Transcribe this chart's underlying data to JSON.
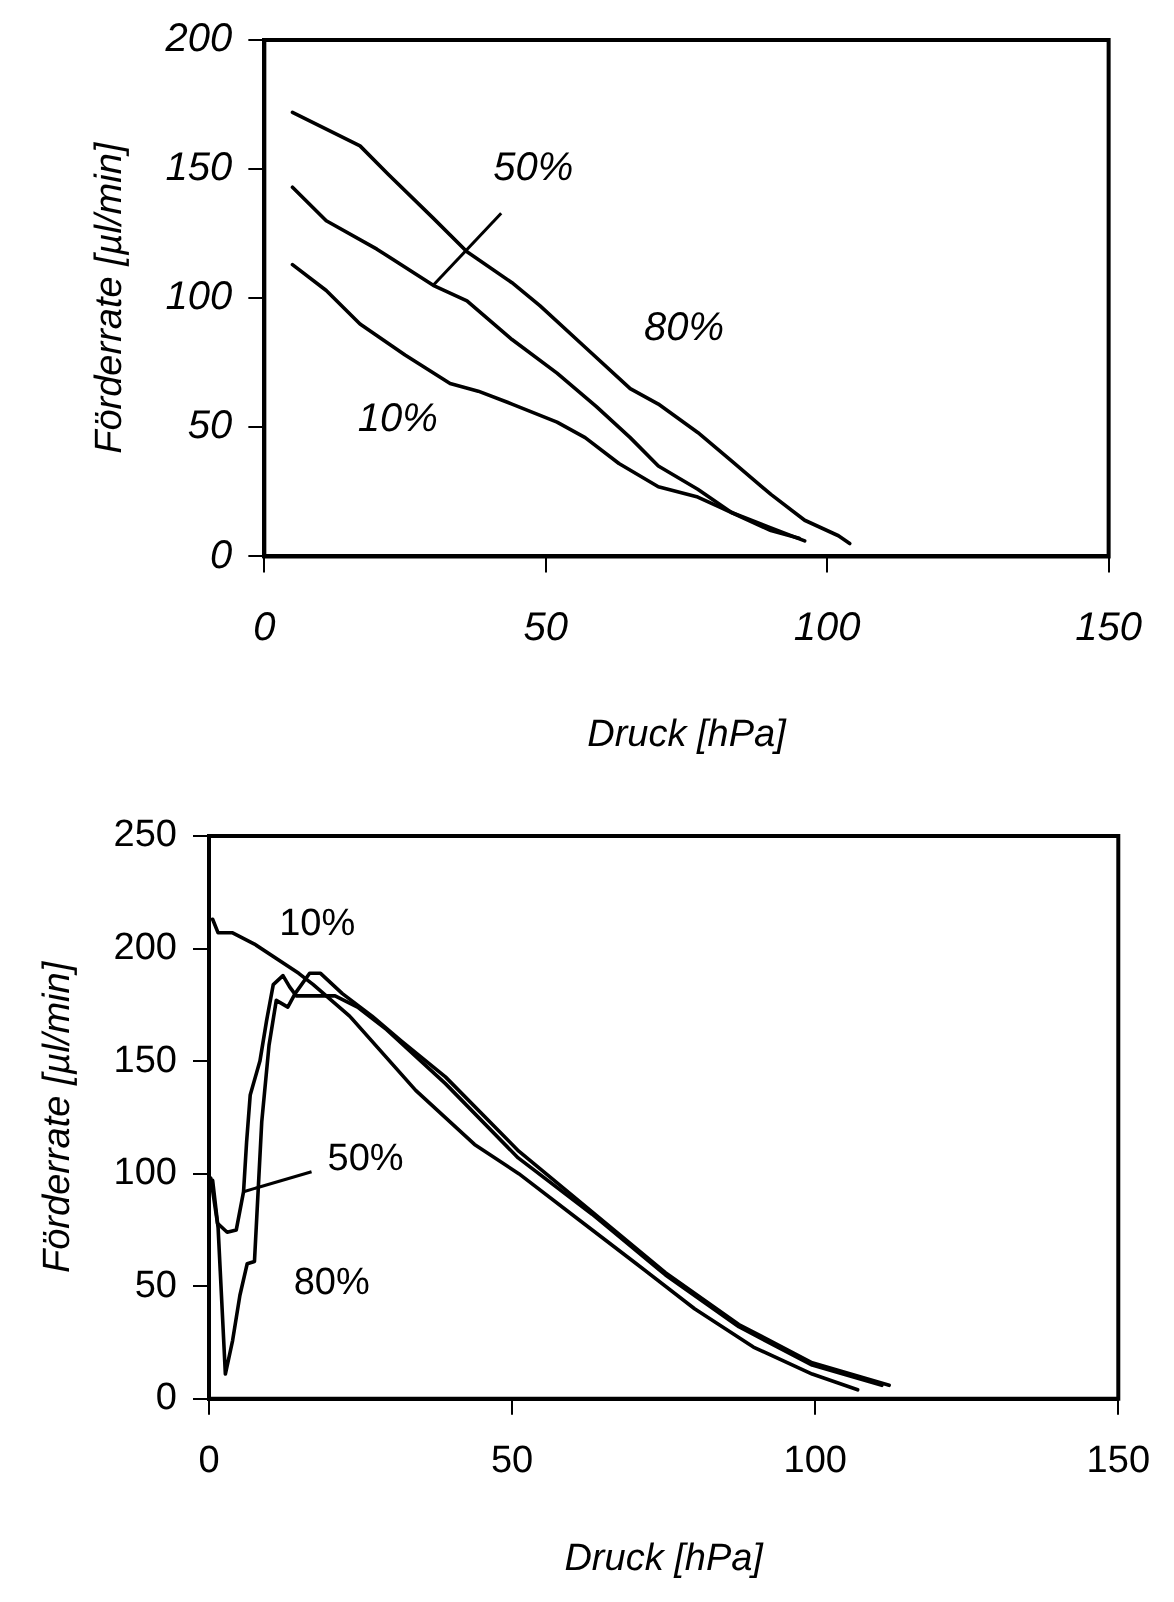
{
  "chart_data": [
    {
      "type": "line",
      "xlabel": "Druck [hPa]",
      "ylabel": "Förderrate [µl/min]",
      "xlim": [
        0,
        150
      ],
      "xticks": [
        0,
        50,
        100,
        150
      ],
      "ylim": [
        0,
        200
      ],
      "yticks": [
        0,
        50,
        100,
        150,
        200
      ],
      "grid": false,
      "legend": false,
      "marker": "none",
      "line_style": "solid",
      "series": [
        {
          "color": "#000000",
          "x": [
            5,
            17,
            22,
            30,
            36,
            44,
            49,
            57,
            65,
            70,
            77,
            83,
            90,
            96,
            102,
            104
          ],
          "values": [
            172,
            159,
            148,
            131,
            118,
            106,
            97,
            81,
            65,
            59,
            48,
            37,
            24,
            14,
            8,
            5
          ]
        },
        {
          "color": "#000000",
          "x": [
            5,
            11,
            20,
            30,
            36,
            44,
            52,
            59,
            65,
            70,
            77,
            83,
            90,
            96
          ],
          "values": [
            143,
            130,
            119,
            105,
            99,
            84,
            71,
            58,
            46,
            35,
            26,
            17,
            11,
            6
          ]
        },
        {
          "color": "#000000",
          "x": [
            5,
            11,
            17,
            25,
            33,
            38,
            44,
            52,
            57,
            63,
            70,
            77,
            83,
            90,
            95
          ],
          "values": [
            113,
            103,
            90,
            78,
            67,
            64,
            59,
            52,
            46,
            36,
            27,
            23,
            17,
            10,
            7
          ]
        }
      ],
      "annotations": [
        {
          "text": "50%",
          "x": 30,
          "y": 105
        },
        "80%",
        "10%"
      ]
    },
    {
      "type": "line",
      "xlabel": "Druck [hPa]",
      "ylabel": "Förderrate [µl/min]",
      "xlim": [
        0,
        150
      ],
      "xticks": [
        0,
        50,
        100,
        150
      ],
      "ylim": [
        0,
        250
      ],
      "yticks": [
        0,
        50,
        100,
        150,
        200,
        250
      ],
      "grid": false,
      "legend": false,
      "marker": "none",
      "line_style": "solid",
      "series": [
        {
          "color": "#000000",
          "x": [
            0.6,
            1.5,
            3.9,
            7.5,
            14.8,
            17.2,
            23.2,
            34.1,
            43.8,
            51.1,
            60.8,
            70.5,
            80.1,
            89.8,
            99.5,
            107
          ],
          "values": [
            213,
            207,
            207,
            202,
            189,
            184,
            170,
            137,
            113,
            100,
            80,
            60,
            40,
            23,
            11,
            4
          ]
        },
        {
          "color": "#000000",
          "x": [
            0.3,
            1.4,
            3,
            4.5,
            5.7,
            6.2,
            6.8,
            8.4,
            9.5,
            10.6,
            12.2,
            13.3,
            14.4,
            17.2,
            20.8,
            24.5,
            29.3,
            39,
            51,
            63.2,
            75.3,
            87.4,
            99.5,
            111
          ],
          "values": [
            98,
            78,
            74,
            75,
            92,
            114,
            135,
            150,
            168,
            184,
            188,
            183,
            179,
            179,
            179,
            174,
            164,
            140,
            107,
            82,
            55,
            32,
            15,
            6
          ]
        },
        {
          "color": "#000000",
          "x": [
            0.6,
            1.5,
            2.7,
            3.9,
            5.1,
            6.3,
            7.5,
            8.7,
            9.9,
            11.1,
            13,
            14.2,
            16.6,
            18.4,
            22,
            26.9,
            31.7,
            39,
            51.1,
            63.2,
            75.3,
            87.4,
            99.5,
            112.2
          ],
          "values": [
            97,
            76,
            11,
            26,
            46,
            60,
            61,
            123,
            157,
            177,
            174,
            180,
            189,
            189,
            180,
            170,
            159,
            143,
            110,
            83,
            56,
            33,
            16,
            6
          ]
        }
      ],
      "annotations": [
        "10%",
        {
          "text": "50%",
          "x": 5.7,
          "y": 92
        },
        "80%"
      ]
    }
  ]
}
